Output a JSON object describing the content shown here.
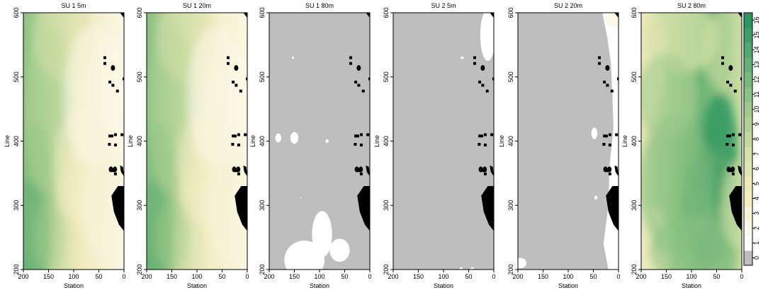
{
  "chart_data": {
    "type": "heatmap",
    "panels": [
      {
        "title": "SU 1 5m",
        "style": "east-fade",
        "white_blobs": []
      },
      {
        "title": "SU 1 20m",
        "style": "east-fade-2",
        "white_blobs": []
      },
      {
        "title": "SU 1 80m",
        "style": "grey",
        "white_blobs": [
          [
            153,
            530,
            2,
            2
          ],
          [
            182,
            405,
            6,
            7
          ],
          [
            150,
            405,
            8,
            9
          ],
          [
            85,
            400,
            3,
            3
          ],
          [
            137,
            312,
            1,
            1
          ],
          [
            95,
            255,
            20,
            36
          ],
          [
            130,
            215,
            40,
            30
          ],
          [
            60,
            230,
            20,
            18
          ]
        ]
      },
      {
        "title": "SU 2 5m",
        "style": "grey",
        "white_blobs": [
          [
            12,
            565,
            15,
            40
          ],
          [
            63,
            530,
            3,
            2
          ],
          [
            65,
            200,
            3,
            4
          ],
          [
            43,
            200,
            3,
            4
          ]
        ]
      },
      {
        "title": "SU 2 20m",
        "style": "grey-east-white",
        "white_blobs": [
          [
            48,
            412,
            6,
            9
          ],
          [
            45,
            312,
            3,
            3
          ],
          [
            195,
            210,
            12,
            8
          ]
        ]
      },
      {
        "title": "SU 2 80m",
        "style": "green-mix",
        "white_blobs": []
      }
    ],
    "xlabel": "Station",
    "ylabel": "Line",
    "xlim": [
      200,
      0
    ],
    "ylim": [
      200,
      600
    ],
    "x_ticks": [
      200,
      150,
      100,
      50,
      0
    ],
    "y_ticks": [
      200,
      300,
      400,
      500,
      600
    ],
    "legend": {
      "placement": "right",
      "ticks": [
        0,
        1,
        2,
        3,
        4,
        5,
        6,
        7,
        8,
        9,
        10,
        11,
        12,
        13,
        14,
        15,
        16
      ],
      "colors": [
        "#bebebe",
        "#ffffff",
        "#fbf9ea",
        "#f7f3d4",
        "#f3edc0",
        "#ecebb8",
        "#e1e6b0",
        "#d3e0a6",
        "#c3d99d",
        "#b1d194",
        "#9eca8c",
        "#8ac283",
        "#76b97b",
        "#63b174",
        "#51a86d",
        "#3f9f66",
        "#2d965f"
      ]
    },
    "masks": {
      "squares": [
        [
          38,
          530
        ],
        [
          38,
          521
        ],
        [
          28,
          492
        ],
        [
          22,
          487
        ],
        [
          13,
          478
        ],
        [
          0,
          497
        ],
        [
          17,
          410
        ],
        [
          24,
          408
        ],
        [
          17,
          394
        ],
        [
          22,
          354
        ],
        [
          17,
          349
        ],
        [
          4,
          410
        ],
        [
          28,
          408
        ],
        [
          29,
          395
        ]
      ],
      "dots": [
        [
          22,
          514
        ],
        [
          18,
          356
        ],
        [
          26,
          356
        ]
      ],
      "corner_top_right": [
        [
          8,
          600
        ],
        [
          0,
          600
        ],
        [
          0,
          592
        ]
      ],
      "right_lobe": [
        [
          0,
          347
        ],
        [
          2,
          360
        ],
        [
          8,
          362
        ],
        [
          6,
          352
        ],
        [
          0,
          345
        ]
      ],
      "right_blob": [
        [
          0,
          260
        ],
        [
          0,
          330
        ],
        [
          12,
          330
        ],
        [
          25,
          315
        ],
        [
          20,
          290
        ],
        [
          10,
          270
        ]
      ]
    }
  }
}
